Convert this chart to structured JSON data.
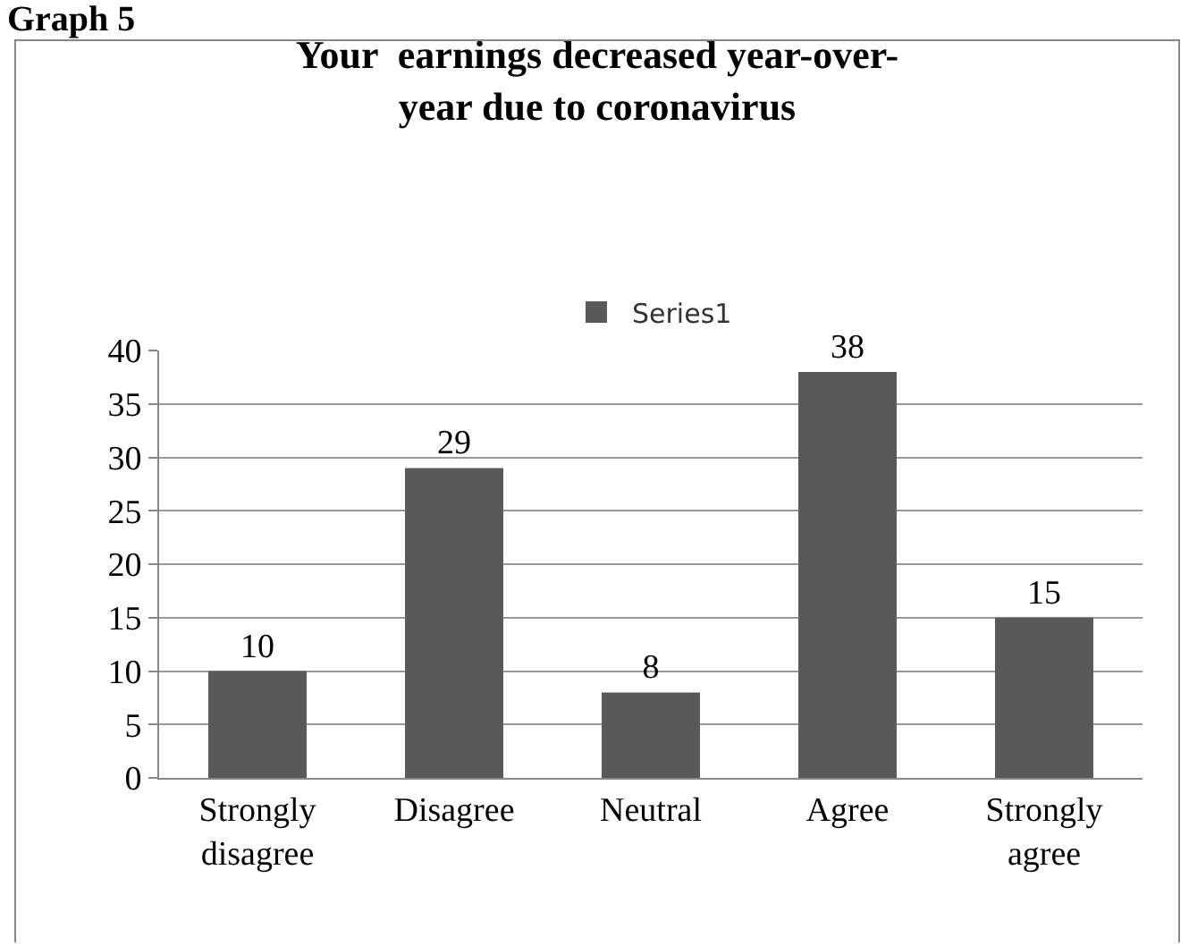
{
  "chart_data": {
    "type": "bar",
    "title": "Your  earnings decreased year-over-year due to coronavirus",
    "annotations": [
      "Graph 5"
    ],
    "categories": [
      "Strongly disagree",
      "Disagree",
      "Neutral",
      "Agree",
      "Strongly agree"
    ],
    "series": [
      {
        "name": "Series1",
        "color": "#595959",
        "values": [
          10,
          29,
          8,
          38,
          15
        ]
      }
    ],
    "ylim": [
      0,
      40
    ],
    "yticks": [
      0,
      5,
      10,
      15,
      20,
      25,
      30,
      35,
      40
    ],
    "grid": "y",
    "legend": "top",
    "data_labels": true
  }
}
